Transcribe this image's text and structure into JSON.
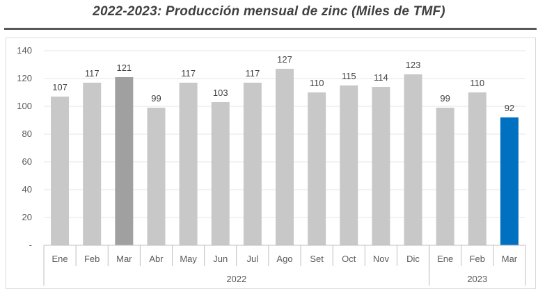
{
  "chart_data": {
    "type": "bar",
    "title": "2022-2023: Producción mensual de zinc (Miles de TMF)",
    "categories": [
      "Ene",
      "Feb",
      "Mar",
      "Abr",
      "May",
      "Jun",
      "Jul",
      "Ago",
      "Set",
      "Oct",
      "Nov",
      "Dic",
      "Ene",
      "Feb",
      "Mar"
    ],
    "groups": [
      {
        "label": "2022",
        "start": 0,
        "end": 11
      },
      {
        "label": "2023",
        "start": 12,
        "end": 14
      }
    ],
    "values": [
      107,
      117,
      121,
      99,
      117,
      103,
      117,
      127,
      110,
      115,
      114,
      123,
      99,
      110,
      92
    ],
    "bar_colors": [
      "#c8c8c8",
      "#c8c8c8",
      "#a0a0a0",
      "#c8c8c8",
      "#c8c8c8",
      "#c8c8c8",
      "#c8c8c8",
      "#c8c8c8",
      "#c8c8c8",
      "#c8c8c8",
      "#c8c8c8",
      "#c8c8c8",
      "#c8c8c8",
      "#c8c8c8",
      "#0070c0"
    ],
    "ylim": [
      0,
      140
    ],
    "yticks": [
      0,
      20,
      40,
      60,
      80,
      100,
      120,
      140
    ],
    "ytick_labels": [
      "-",
      "20",
      "40",
      "60",
      "80",
      "100",
      "120",
      "140"
    ],
    "grid": true,
    "xlabel": "",
    "ylabel": ""
  }
}
